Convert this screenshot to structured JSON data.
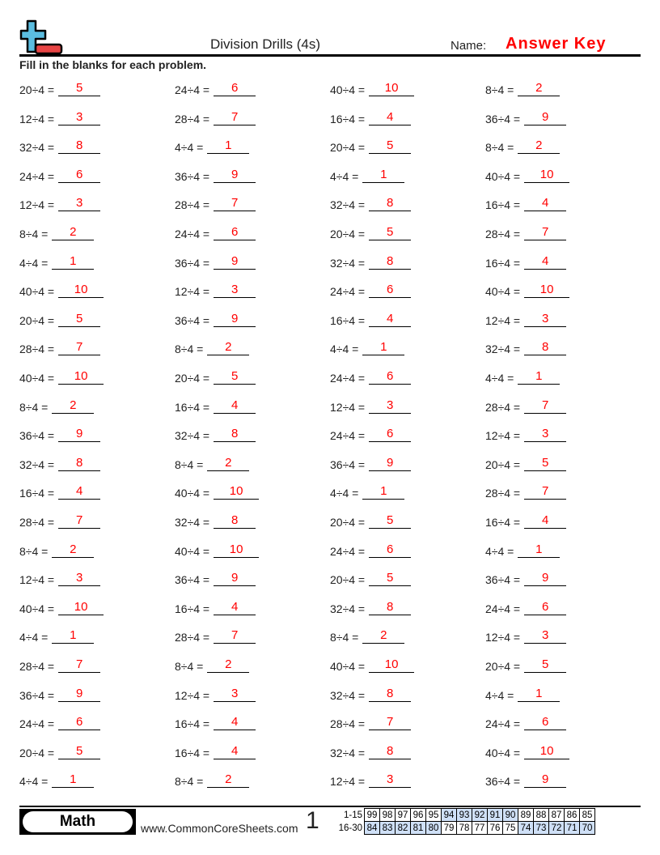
{
  "header": {
    "title": "Division Drills (4s)",
    "name_label": "Name:",
    "name_value": "Answer Key",
    "instructions": "Fill in the blanks for each problem."
  },
  "colors": {
    "answer": "#ff0000",
    "logo_plus": "#5bbde0",
    "logo_minus": "#e84545",
    "score_highlight": "#cfe0f7"
  },
  "columns": [
    [
      [
        "20÷4 =",
        "5"
      ],
      [
        "12÷4 =",
        "3"
      ],
      [
        "32÷4 =",
        "8"
      ],
      [
        "24÷4 =",
        "6"
      ],
      [
        "12÷4 =",
        "3"
      ],
      [
        "8÷4 =",
        "2"
      ],
      [
        "4÷4 =",
        "1"
      ],
      [
        "40÷4 =",
        "10"
      ],
      [
        "20÷4 =",
        "5"
      ],
      [
        "28÷4 =",
        "7"
      ],
      [
        "40÷4 =",
        "10"
      ],
      [
        "8÷4 =",
        "2"
      ],
      [
        "36÷4 =",
        "9"
      ],
      [
        "32÷4 =",
        "8"
      ],
      [
        "16÷4 =",
        "4"
      ],
      [
        "28÷4 =",
        "7"
      ],
      [
        "8÷4 =",
        "2"
      ],
      [
        "12÷4 =",
        "3"
      ],
      [
        "40÷4 =",
        "10"
      ],
      [
        "4÷4 =",
        "1"
      ],
      [
        "28÷4 =",
        "7"
      ],
      [
        "36÷4 =",
        "9"
      ],
      [
        "24÷4 =",
        "6"
      ],
      [
        "20÷4 =",
        "5"
      ],
      [
        "4÷4 =",
        "1"
      ]
    ],
    [
      [
        "24÷4 =",
        "6"
      ],
      [
        "28÷4 =",
        "7"
      ],
      [
        "4÷4 =",
        "1"
      ],
      [
        "36÷4 =",
        "9"
      ],
      [
        "28÷4 =",
        "7"
      ],
      [
        "24÷4 =",
        "6"
      ],
      [
        "36÷4 =",
        "9"
      ],
      [
        "12÷4 =",
        "3"
      ],
      [
        "36÷4 =",
        "9"
      ],
      [
        "8÷4 =",
        "2"
      ],
      [
        "20÷4 =",
        "5"
      ],
      [
        "16÷4 =",
        "4"
      ],
      [
        "32÷4 =",
        "8"
      ],
      [
        "8÷4 =",
        "2"
      ],
      [
        "40÷4 =",
        "10"
      ],
      [
        "32÷4 =",
        "8"
      ],
      [
        "40÷4 =",
        "10"
      ],
      [
        "36÷4 =",
        "9"
      ],
      [
        "16÷4 =",
        "4"
      ],
      [
        "28÷4 =",
        "7"
      ],
      [
        "8÷4 =",
        "2"
      ],
      [
        "12÷4 =",
        "3"
      ],
      [
        "16÷4 =",
        "4"
      ],
      [
        "16÷4 =",
        "4"
      ],
      [
        "8÷4 =",
        "2"
      ]
    ],
    [
      [
        "40÷4 =",
        "10"
      ],
      [
        "16÷4 =",
        "4"
      ],
      [
        "20÷4 =",
        "5"
      ],
      [
        "4÷4 =",
        "1"
      ],
      [
        "32÷4 =",
        "8"
      ],
      [
        "20÷4 =",
        "5"
      ],
      [
        "32÷4 =",
        "8"
      ],
      [
        "24÷4 =",
        "6"
      ],
      [
        "16÷4 =",
        "4"
      ],
      [
        "4÷4 =",
        "1"
      ],
      [
        "24÷4 =",
        "6"
      ],
      [
        "12÷4 =",
        "3"
      ],
      [
        "24÷4 =",
        "6"
      ],
      [
        "36÷4 =",
        "9"
      ],
      [
        "4÷4 =",
        "1"
      ],
      [
        "20÷4 =",
        "5"
      ],
      [
        "24÷4 =",
        "6"
      ],
      [
        "20÷4 =",
        "5"
      ],
      [
        "32÷4 =",
        "8"
      ],
      [
        "8÷4 =",
        "2"
      ],
      [
        "40÷4 =",
        "10"
      ],
      [
        "32÷4 =",
        "8"
      ],
      [
        "28÷4 =",
        "7"
      ],
      [
        "32÷4 =",
        "8"
      ],
      [
        "12÷4 =",
        "3"
      ]
    ],
    [
      [
        "8÷4 =",
        "2"
      ],
      [
        "36÷4 =",
        "9"
      ],
      [
        "8÷4 =",
        "2"
      ],
      [
        "40÷4 =",
        "10"
      ],
      [
        "16÷4 =",
        "4"
      ],
      [
        "28÷4 =",
        "7"
      ],
      [
        "16÷4 =",
        "4"
      ],
      [
        "40÷4 =",
        "10"
      ],
      [
        "12÷4 =",
        "3"
      ],
      [
        "32÷4 =",
        "8"
      ],
      [
        "4÷4 =",
        "1"
      ],
      [
        "28÷4 =",
        "7"
      ],
      [
        "12÷4 =",
        "3"
      ],
      [
        "20÷4 =",
        "5"
      ],
      [
        "28÷4 =",
        "7"
      ],
      [
        "16÷4 =",
        "4"
      ],
      [
        "4÷4 =",
        "1"
      ],
      [
        "36÷4 =",
        "9"
      ],
      [
        "24÷4 =",
        "6"
      ],
      [
        "12÷4 =",
        "3"
      ],
      [
        "20÷4 =",
        "5"
      ],
      [
        "4÷4 =",
        "1"
      ],
      [
        "24÷4 =",
        "6"
      ],
      [
        "40÷4 =",
        "10"
      ],
      [
        "36÷4 =",
        "9"
      ]
    ]
  ],
  "footer": {
    "subject": "Math",
    "site": "www.CommonCoreSheets.com",
    "page": "1",
    "score_rows": [
      {
        "label": "1-15",
        "values": [
          "99",
          "98",
          "97",
          "96",
          "95",
          "94",
          "93",
          "92",
          "91",
          "90",
          "89",
          "88",
          "87",
          "86",
          "85"
        ],
        "highlight": [
          false,
          false,
          false,
          false,
          false,
          true,
          true,
          true,
          true,
          true,
          false,
          false,
          false,
          false,
          false
        ]
      },
      {
        "label": "16-30",
        "values": [
          "84",
          "83",
          "82",
          "81",
          "80",
          "79",
          "78",
          "77",
          "76",
          "75",
          "74",
          "73",
          "72",
          "71",
          "70"
        ],
        "highlight": [
          true,
          true,
          true,
          true,
          true,
          false,
          false,
          false,
          false,
          false,
          true,
          true,
          true,
          true,
          true
        ]
      }
    ]
  }
}
